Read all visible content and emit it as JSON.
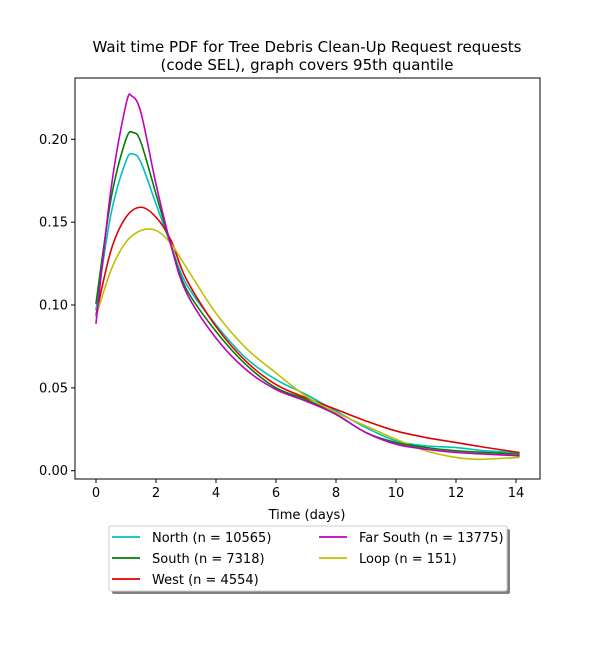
{
  "chart_data": {
    "type": "line",
    "title_line1": "Wait time PDF for Tree Debris Clean-Up Request  requests",
    "title_line2": "(code SEL), graph covers 95th quantile",
    "xlabel": "Time (days)",
    "ylabel": "",
    "xlim": [
      -0.7,
      14.8
    ],
    "ylim": [
      -0.005,
      0.237
    ],
    "xticks": [
      0,
      2,
      4,
      6,
      8,
      10,
      12,
      14
    ],
    "xtick_labels": [
      "0",
      "2",
      "4",
      "6",
      "8",
      "10",
      "12",
      "14"
    ],
    "yticks": [
      0.0,
      0.05,
      0.1,
      0.15,
      0.2
    ],
    "ytick_labels": [
      "0.00",
      "0.05",
      "0.10",
      "0.15",
      "0.20"
    ],
    "grid": false,
    "legend_placement": "below plot, two columns",
    "series": [
      {
        "name": "North (n = 10565)",
        "color": "#00bfbf",
        "x": [
          0,
          0.5,
          1.0,
          1.25,
          1.5,
          2.0,
          2.5,
          3.0,
          4.0,
          5.0,
          6.0,
          7.0,
          8.0,
          9.0,
          10.0,
          11.0,
          12.0,
          13.0,
          14.1
        ],
        "y": [
          0.097,
          0.155,
          0.187,
          0.191,
          0.186,
          0.161,
          0.136,
          0.113,
          0.088,
          0.068,
          0.055,
          0.046,
          0.036,
          0.026,
          0.018,
          0.015,
          0.014,
          0.012,
          0.011
        ]
      },
      {
        "name": "West (n = 4554)",
        "color": "#e00000",
        "x": [
          0,
          0.5,
          1.0,
          1.5,
          2.0,
          2.5,
          3.0,
          4.0,
          5.0,
          6.0,
          7.0,
          8.0,
          9.0,
          10.0,
          11.0,
          12.0,
          13.0,
          14.1
        ],
        "y": [
          0.094,
          0.133,
          0.153,
          0.159,
          0.153,
          0.139,
          0.116,
          0.087,
          0.066,
          0.052,
          0.044,
          0.037,
          0.03,
          0.024,
          0.02,
          0.017,
          0.014,
          0.011
        ]
      },
      {
        "name": "Loop (n = 151)",
        "color": "#bfbf00",
        "x": [
          0,
          0.5,
          1.0,
          1.5,
          2.0,
          2.5,
          3.0,
          4.0,
          5.0,
          6.0,
          7.0,
          8.0,
          9.0,
          10.0,
          11.0,
          12.0,
          12.6,
          13.0,
          14.1
        ],
        "y": [
          0.093,
          0.121,
          0.138,
          0.145,
          0.145,
          0.137,
          0.123,
          0.095,
          0.074,
          0.059,
          0.045,
          0.035,
          0.027,
          0.019,
          0.012,
          0.008,
          0.007,
          0.007,
          0.008
        ]
      },
      {
        "name": "South (n = 7318)",
        "color": "#008000",
        "x": [
          0,
          0.5,
          1.0,
          1.25,
          1.5,
          2.0,
          2.5,
          3.0,
          4.0,
          5.0,
          6.0,
          7.0,
          8.0,
          9.0,
          10.0,
          11.0,
          12.0,
          13.0,
          14.1
        ],
        "y": [
          0.101,
          0.164,
          0.2,
          0.204,
          0.198,
          0.167,
          0.136,
          0.11,
          0.084,
          0.064,
          0.05,
          0.043,
          0.034,
          0.023,
          0.017,
          0.014,
          0.012,
          0.011,
          0.01
        ]
      },
      {
        "name": "Far South (n = 13775)",
        "color": "#bf00bf",
        "x": [
          0,
          0.5,
          1.0,
          1.2,
          1.5,
          2.0,
          2.5,
          3.0,
          4.0,
          5.0,
          6.0,
          7.0,
          8.0,
          9.0,
          10.0,
          11.0,
          12.0,
          13.0,
          14.1
        ],
        "y": [
          0.089,
          0.17,
          0.221,
          0.226,
          0.216,
          0.173,
          0.136,
          0.108,
          0.08,
          0.061,
          0.049,
          0.042,
          0.034,
          0.023,
          0.016,
          0.013,
          0.011,
          0.01,
          0.009
        ]
      }
    ],
    "legend_order": [
      0,
      3,
      1,
      4,
      2
    ]
  }
}
